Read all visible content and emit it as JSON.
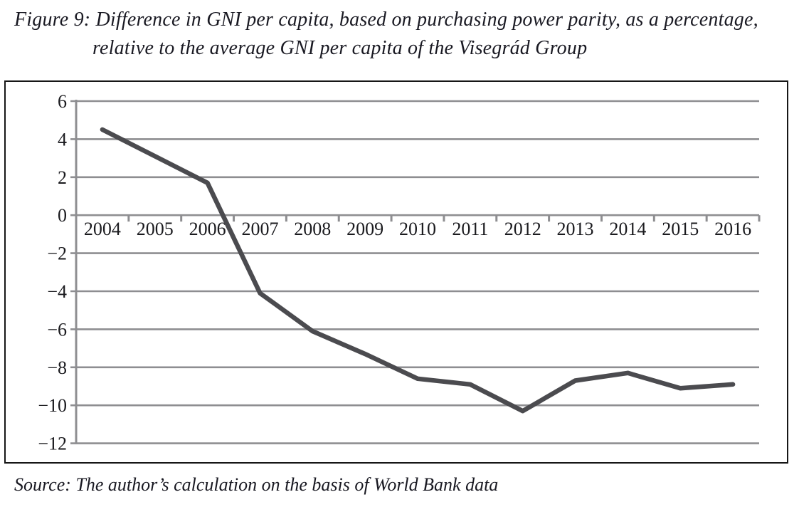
{
  "figure": {
    "title_line1": "Figure 9: Difference in GNI per capita, based on purchasing power parity, as a percentage,",
    "title_line2": "relative to the average GNI per capita of the Visegrád Group",
    "source": "Source: The author’s calculation on the basis of World Bank data"
  },
  "chart_data": {
    "type": "line",
    "categories": [
      "2004",
      "2005",
      "2006",
      "2007",
      "2008",
      "2009",
      "2010",
      "2011",
      "2012",
      "2013",
      "2014",
      "2015",
      "2016"
    ],
    "values": [
      4.5,
      3.1,
      1.7,
      -4.1,
      -6.1,
      -7.3,
      -8.6,
      -8.9,
      -10.3,
      -8.7,
      -8.3,
      -9.1,
      -8.9
    ],
    "series_name": "Difference in GNI per capita vs Visegrád Group average (%)",
    "title": "",
    "xlabel": "",
    "ylabel": "",
    "ylim": [
      -12,
      6
    ],
    "ytick_step": 2,
    "yticks": [
      6,
      4,
      2,
      0,
      -2,
      -4,
      -6,
      -8,
      -10,
      -12
    ],
    "ytick_labels": [
      "6",
      "4",
      "2",
      "0",
      "−2",
      "−4",
      "−6",
      "−8",
      "−10",
      "−12"
    ],
    "grid": true,
    "legend_position": "none",
    "line_color": "#4b4b4f",
    "grid_color": "#8e8e91",
    "axis_color": "#8e8e91",
    "tick_label_color": "#1a1a1e",
    "line_width": 6.5
  }
}
